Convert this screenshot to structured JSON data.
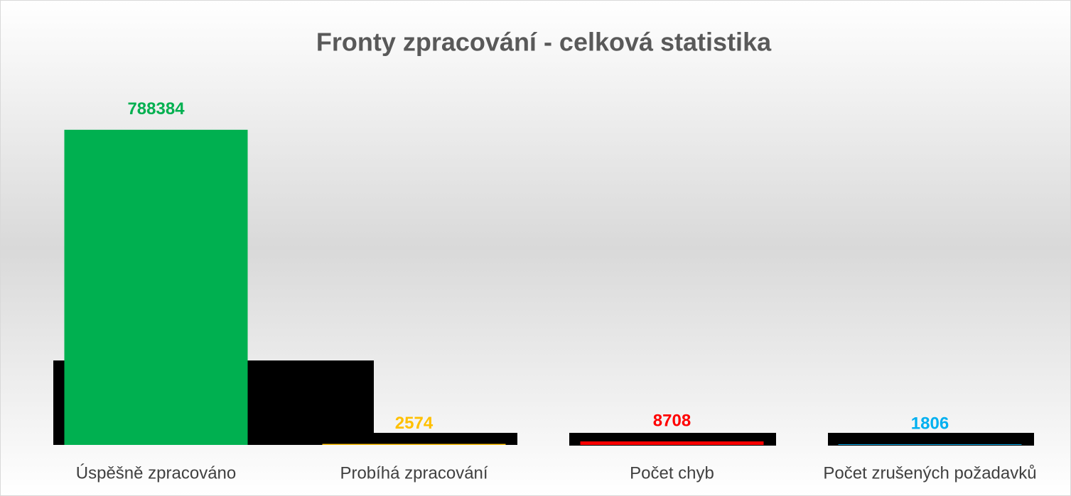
{
  "chart_data": {
    "type": "bar",
    "title": "Fronty zpracování - celková statistika",
    "categories": [
      "Úspěšně zpracováno",
      "Probíhá zpracování",
      "Počet chyb",
      "Počet zrušených požadavků"
    ],
    "values": [
      788384,
      2574,
      8708,
      1806
    ],
    "colors": [
      "#00b050",
      "#ffc000",
      "#ff0000",
      "#00b0f0"
    ],
    "ylim": [
      0,
      900000
    ],
    "grid": false
  }
}
